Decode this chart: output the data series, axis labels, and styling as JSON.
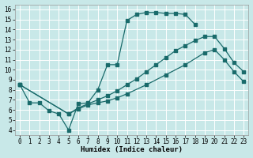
{
  "xlabel": "Humidex (Indice chaleur)",
  "bg_color": "#c8e8e8",
  "grid_color": "#ffffff",
  "line_color": "#1a6b6b",
  "xlim": [
    -0.5,
    23.5
  ],
  "ylim": [
    3.5,
    16.5
  ],
  "xticks": [
    0,
    1,
    2,
    3,
    4,
    5,
    6,
    7,
    8,
    9,
    10,
    11,
    12,
    13,
    14,
    15,
    16,
    17,
    18,
    19,
    20,
    21,
    22,
    23
  ],
  "yticks": [
    4,
    5,
    6,
    7,
    8,
    9,
    10,
    11,
    12,
    13,
    14,
    15,
    16
  ],
  "curve1_x": [
    0,
    1,
    2,
    3,
    4,
    5,
    6,
    7,
    8,
    9,
    10,
    11,
    12,
    13,
    14,
    15,
    16,
    17,
    18
  ],
  "curve1_y": [
    8.5,
    6.7,
    6.7,
    5.9,
    5.6,
    4.0,
    6.6,
    6.7,
    8.0,
    10.5,
    10.5,
    14.9,
    15.5,
    15.7,
    15.7,
    15.6,
    15.6,
    15.5,
    14.5
  ],
  "curve2_x": [
    0,
    5,
    6,
    7,
    8,
    9,
    10,
    11,
    12,
    13,
    14,
    15,
    16,
    17,
    18,
    19,
    20,
    21,
    22,
    23
  ],
  "curve2_y": [
    8.5,
    5.6,
    6.2,
    6.6,
    7.0,
    7.4,
    7.9,
    8.5,
    9.1,
    9.8,
    10.5,
    11.2,
    11.9,
    12.4,
    12.9,
    13.3,
    13.3,
    12.1,
    10.7,
    9.8
  ],
  "curve3_x": [
    0,
    5,
    6,
    7,
    8,
    9,
    10,
    11,
    13,
    15,
    17,
    19,
    20,
    21,
    22,
    23
  ],
  "curve3_y": [
    8.5,
    5.6,
    6.1,
    6.5,
    6.7,
    6.9,
    7.2,
    7.6,
    8.5,
    9.5,
    10.5,
    11.7,
    12.0,
    11.0,
    9.8,
    8.8
  ]
}
